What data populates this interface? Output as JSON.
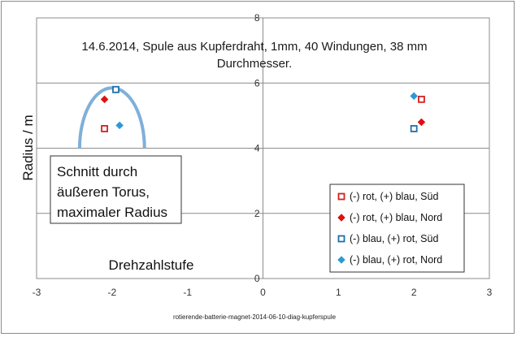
{
  "chart_data": {
    "type": "scatter",
    "title_lines": [
      "14.6.2014, Spule aus Kupferdraht, 1mm, 40 Windungen, 38 mm",
      "Durchmesser."
    ],
    "xlabel": "Drehzahlstufe",
    "ylabel": "Radius / m",
    "xlim": [
      -3,
      3
    ],
    "ylim": [
      0,
      8
    ],
    "x_ticks": [
      -3,
      -2,
      -1,
      0,
      1,
      2,
      3
    ],
    "y_ticks": [
      0,
      2,
      4,
      6,
      8
    ],
    "grid": "horizontal",
    "legend_position": "bottom-right",
    "series": [
      {
        "name": "(-) rot, (+) blau, Süd",
        "marker": "square-open",
        "color": "#d42020",
        "points": [
          [
            -2.1,
            4.6
          ],
          [
            2.1,
            5.5
          ]
        ]
      },
      {
        "name": "(-) rot, (+) blau, Nord",
        "marker": "diamond",
        "color": "#e01010",
        "points": [
          [
            -2.1,
            5.5
          ],
          [
            2.1,
            4.8
          ]
        ]
      },
      {
        "name": "(-) blau, (+) rot, Süd",
        "marker": "square-open",
        "color": "#1f6fa8",
        "points": [
          [
            -1.95,
            5.8
          ],
          [
            2.0,
            4.6
          ]
        ]
      },
      {
        "name": "(-) blau, (+) rot, Nord",
        "marker": "diamond",
        "color": "#2b9ad6",
        "points": [
          [
            -1.9,
            4.7
          ],
          [
            2.0,
            5.6
          ]
        ]
      }
    ],
    "annotation": {
      "lines": [
        "Schnitt durch",
        "äußeren Torus,",
        "maximaler Radius"
      ],
      "arc_color": "#7fb0d8",
      "arc_center_x": -2.0,
      "arc_half_width": 0.43,
      "arc_base_y": 4.0,
      "arc_top_y": 5.85
    }
  },
  "footer": "rotierende-batterie-magnet-2014-06-10-diag-kupferspule"
}
